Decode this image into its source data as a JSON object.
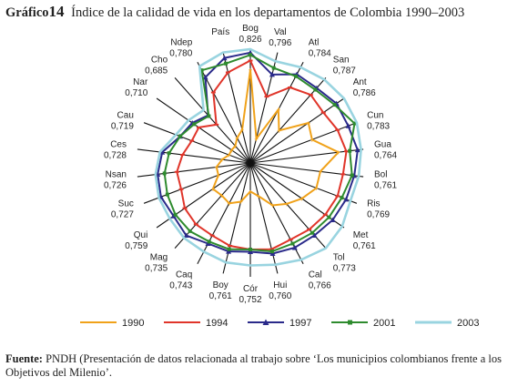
{
  "title": {
    "label": "Gráfico",
    "number": "14",
    "text": "Índice de la calidad de vida en los departamentos de Colombia 1990–2003"
  },
  "source": {
    "label": "Fuente:",
    "text": "PNDH (Presentación de datos relacionada al trabajo sobre ‘Los municipios colombianos frente a los Objetivos del Milenio’."
  },
  "chart_data": {
    "type": "radar",
    "axes": [
      {
        "name": "Bog",
        "label": "0,826"
      },
      {
        "name": "Val",
        "label": "0,796"
      },
      {
        "name": "Atl",
        "label": "0,784"
      },
      {
        "name": "San",
        "label": "0,787"
      },
      {
        "name": "Ant",
        "label": "0,786"
      },
      {
        "name": "Cun",
        "label": "0,783"
      },
      {
        "name": "Gua",
        "label": "0,764"
      },
      {
        "name": "Bol",
        "label": "0,761"
      },
      {
        "name": "Ris",
        "label": "0,769"
      },
      {
        "name": "Met",
        "label": "0,761"
      },
      {
        "name": "Tol",
        "label": "0,773"
      },
      {
        "name": "Cal",
        "label": "0,766"
      },
      {
        "name": "Hui",
        "label": "0,760"
      },
      {
        "name": "Cór",
        "label": "0,752"
      },
      {
        "name": "Boy",
        "label": "0,761"
      },
      {
        "name": "Caq",
        "label": "0,743"
      },
      {
        "name": "Mag",
        "label": "0,735"
      },
      {
        "name": "Qui",
        "label": "0,759"
      },
      {
        "name": "Suc",
        "label": "0,727"
      },
      {
        "name": "Nsan",
        "label": "0,726"
      },
      {
        "name": "Ces",
        "label": "0,728"
      },
      {
        "name": "Cau",
        "label": "0,719"
      },
      {
        "name": "Nar",
        "label": "0,710"
      },
      {
        "name": "Cho",
        "label": "0,685"
      },
      {
        "name": "Ndep",
        "label": "0,780"
      },
      {
        "name": "País",
        "label": ""
      }
    ],
    "scale": [
      0,
      1
    ],
    "grid": false,
    "legend_position": "bottom",
    "series": [
      {
        "name": "1990",
        "color": "#f0a21a",
        "values": [
          0.82,
          0.22,
          0.53,
          0.38,
          0.62,
          0.58,
          0.78,
          0.62,
          0.62,
          0.55,
          0.48,
          0.42,
          0.3,
          0.25,
          0.35,
          0.4,
          0.38,
          0.4,
          0.3,
          0.3,
          0.25,
          0.2,
          0.2,
          0.2,
          0.25,
          0.3
        ]
      },
      {
        "name": "1994",
        "color": "#e0352a",
        "values": [
          0.9,
          0.6,
          0.75,
          0.8,
          0.78,
          0.82,
          0.85,
          0.82,
          0.82,
          0.8,
          0.78,
          0.76,
          0.78,
          0.76,
          0.75,
          0.72,
          0.72,
          0.7,
          0.65,
          0.65,
          0.6,
          0.55,
          0.55,
          0.45,
          0.7,
          0.82
        ]
      },
      {
        "name": "1997",
        "color": "#2a2a8a",
        "values": [
          0.97,
          0.8,
          0.88,
          0.88,
          0.92,
          0.92,
          0.95,
          0.92,
          0.9,
          0.88,
          0.85,
          0.84,
          0.82,
          0.78,
          0.8,
          0.8,
          0.85,
          0.82,
          0.84,
          0.82,
          0.78,
          0.66,
          0.62,
          0.56,
          0.85,
          0.95
        ]
      },
      {
        "name": "2001",
        "color": "#2e8b2e",
        "values": [
          0.95,
          0.86,
          0.86,
          0.86,
          0.9,
          0.98,
          0.88,
          0.9,
          0.86,
          0.84,
          0.82,
          0.8,
          0.8,
          0.76,
          0.78,
          0.78,
          0.8,
          0.8,
          0.78,
          0.76,
          0.72,
          0.66,
          0.6,
          0.55,
          0.92,
          0.9
        ]
      },
      {
        "name": "2003",
        "color": "#99d4e0",
        "values": [
          1.0,
          0.92,
          0.95,
          0.98,
          1.0,
          1.0,
          0.98,
          0.96,
          0.94,
          0.98,
          1.0,
          0.96,
          0.92,
          0.9,
          0.9,
          0.88,
          0.88,
          0.86,
          0.86,
          0.84,
          0.8,
          0.7,
          0.66,
          0.62,
          0.96,
          1.0
        ]
      }
    ]
  }
}
